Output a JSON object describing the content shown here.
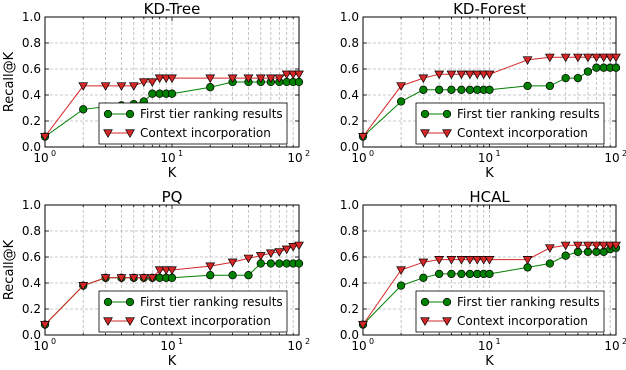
{
  "chart_data": [
    {
      "type": "line",
      "title": "KD-Tree",
      "xlabel": "K",
      "ylabel": "Recall@K",
      "xscale": "log",
      "xlim": [
        1,
        100
      ],
      "ylim": [
        0,
        1.0
      ],
      "xticks": [
        "10",
        "10",
        "10"
      ],
      "xtick_exponents": [
        "0",
        "1",
        "2"
      ],
      "yticks": [
        "0.0",
        "0.2",
        "0.4",
        "0.6",
        "0.8",
        "1.0"
      ],
      "grid": true,
      "legend_position": "lower-right",
      "x": [
        1,
        2,
        3,
        4,
        5,
        6,
        7,
        8,
        9,
        10,
        20,
        30,
        40,
        50,
        60,
        70,
        80,
        90,
        100
      ],
      "series": [
        {
          "name": "First tier ranking results",
          "color": "#008000",
          "marker": "circle",
          "values": [
            0.08,
            0.29,
            0.31,
            0.32,
            0.33,
            0.35,
            0.41,
            0.41,
            0.41,
            0.41,
            0.46,
            0.5,
            0.5,
            0.5,
            0.5,
            0.5,
            0.5,
            0.5,
            0.5
          ]
        },
        {
          "name": "Context incorporation",
          "color": "#d62728",
          "marker": "triangle-down",
          "values": [
            0.08,
            0.47,
            0.47,
            0.47,
            0.47,
            0.5,
            0.5,
            0.53,
            0.53,
            0.53,
            0.53,
            0.53,
            0.53,
            0.53,
            0.53,
            0.53,
            0.56,
            0.56,
            0.56
          ]
        }
      ]
    },
    {
      "type": "line",
      "title": "KD-Forest",
      "xlabel": "K",
      "ylabel": "",
      "xscale": "log",
      "xlim": [
        1,
        100
      ],
      "ylim": [
        0,
        1.0
      ],
      "xticks": [
        "10",
        "10",
        "10"
      ],
      "xtick_exponents": [
        "0",
        "1",
        "2"
      ],
      "yticks": [
        "0.0",
        "0.2",
        "0.4",
        "0.6",
        "0.8",
        "1.0"
      ],
      "grid": true,
      "legend_position": "lower-right",
      "x": [
        1,
        2,
        3,
        4,
        5,
        6,
        7,
        8,
        9,
        10,
        20,
        30,
        40,
        50,
        60,
        70,
        80,
        90,
        100
      ],
      "series": [
        {
          "name": "First tier ranking results",
          "color": "#008000",
          "marker": "circle",
          "values": [
            0.08,
            0.35,
            0.44,
            0.44,
            0.44,
            0.44,
            0.44,
            0.44,
            0.44,
            0.44,
            0.47,
            0.47,
            0.53,
            0.53,
            0.58,
            0.61,
            0.61,
            0.61,
            0.61
          ]
        },
        {
          "name": "Context incorporation",
          "color": "#d62728",
          "marker": "triangle-down",
          "values": [
            0.08,
            0.47,
            0.53,
            0.56,
            0.56,
            0.56,
            0.56,
            0.56,
            0.56,
            0.56,
            0.67,
            0.69,
            0.69,
            0.69,
            0.69,
            0.69,
            0.69,
            0.69,
            0.69
          ]
        }
      ]
    },
    {
      "type": "line",
      "title": "PQ",
      "xlabel": "K",
      "ylabel": "Recall@K",
      "xscale": "log",
      "xlim": [
        1,
        100
      ],
      "ylim": [
        0,
        1.0
      ],
      "xticks": [
        "10",
        "10",
        "10"
      ],
      "xtick_exponents": [
        "0",
        "1",
        "2"
      ],
      "yticks": [
        "0.0",
        "0.2",
        "0.4",
        "0.6",
        "0.8",
        "1.0"
      ],
      "grid": true,
      "legend_position": "lower-right",
      "x": [
        1,
        2,
        3,
        4,
        5,
        6,
        7,
        8,
        9,
        10,
        20,
        30,
        40,
        50,
        60,
        70,
        80,
        90,
        100
      ],
      "series": [
        {
          "name": "First tier ranking results",
          "color": "#008000",
          "marker": "circle",
          "values": [
            0.08,
            0.38,
            0.44,
            0.44,
            0.44,
            0.44,
            0.44,
            0.44,
            0.44,
            0.44,
            0.46,
            0.46,
            0.46,
            0.55,
            0.55,
            0.55,
            0.55,
            0.55,
            0.55
          ]
        },
        {
          "name": "Context incorporation",
          "color": "#d62728",
          "marker": "triangle-down",
          "values": [
            0.08,
            0.38,
            0.44,
            0.44,
            0.44,
            0.44,
            0.44,
            0.5,
            0.5,
            0.5,
            0.53,
            0.56,
            0.59,
            0.61,
            0.63,
            0.64,
            0.66,
            0.68,
            0.69
          ]
        }
      ]
    },
    {
      "type": "line",
      "title": "HCAL",
      "xlabel": "K",
      "ylabel": "",
      "xscale": "log",
      "xlim": [
        1,
        100
      ],
      "ylim": [
        0,
        1.0
      ],
      "xticks": [
        "10",
        "10",
        "10"
      ],
      "xtick_exponents": [
        "0",
        "1",
        "2"
      ],
      "yticks": [
        "0.0",
        "0.2",
        "0.4",
        "0.6",
        "0.8",
        "1.0"
      ],
      "grid": true,
      "legend_position": "lower-right",
      "x": [
        1,
        2,
        3,
        4,
        5,
        6,
        7,
        8,
        9,
        10,
        20,
        30,
        40,
        50,
        60,
        70,
        80,
        90,
        100
      ],
      "series": [
        {
          "name": "First tier ranking results",
          "color": "#008000",
          "marker": "circle",
          "values": [
            0.08,
            0.38,
            0.44,
            0.47,
            0.47,
            0.47,
            0.47,
            0.47,
            0.47,
            0.47,
            0.52,
            0.55,
            0.61,
            0.64,
            0.64,
            0.64,
            0.64,
            0.66,
            0.67
          ]
        },
        {
          "name": "Context incorporation",
          "color": "#d62728",
          "marker": "triangle-down",
          "values": [
            0.08,
            0.5,
            0.56,
            0.58,
            0.58,
            0.58,
            0.58,
            0.58,
            0.58,
            0.58,
            0.58,
            0.67,
            0.69,
            0.69,
            0.69,
            0.69,
            0.69,
            0.69,
            0.69
          ]
        }
      ]
    }
  ]
}
